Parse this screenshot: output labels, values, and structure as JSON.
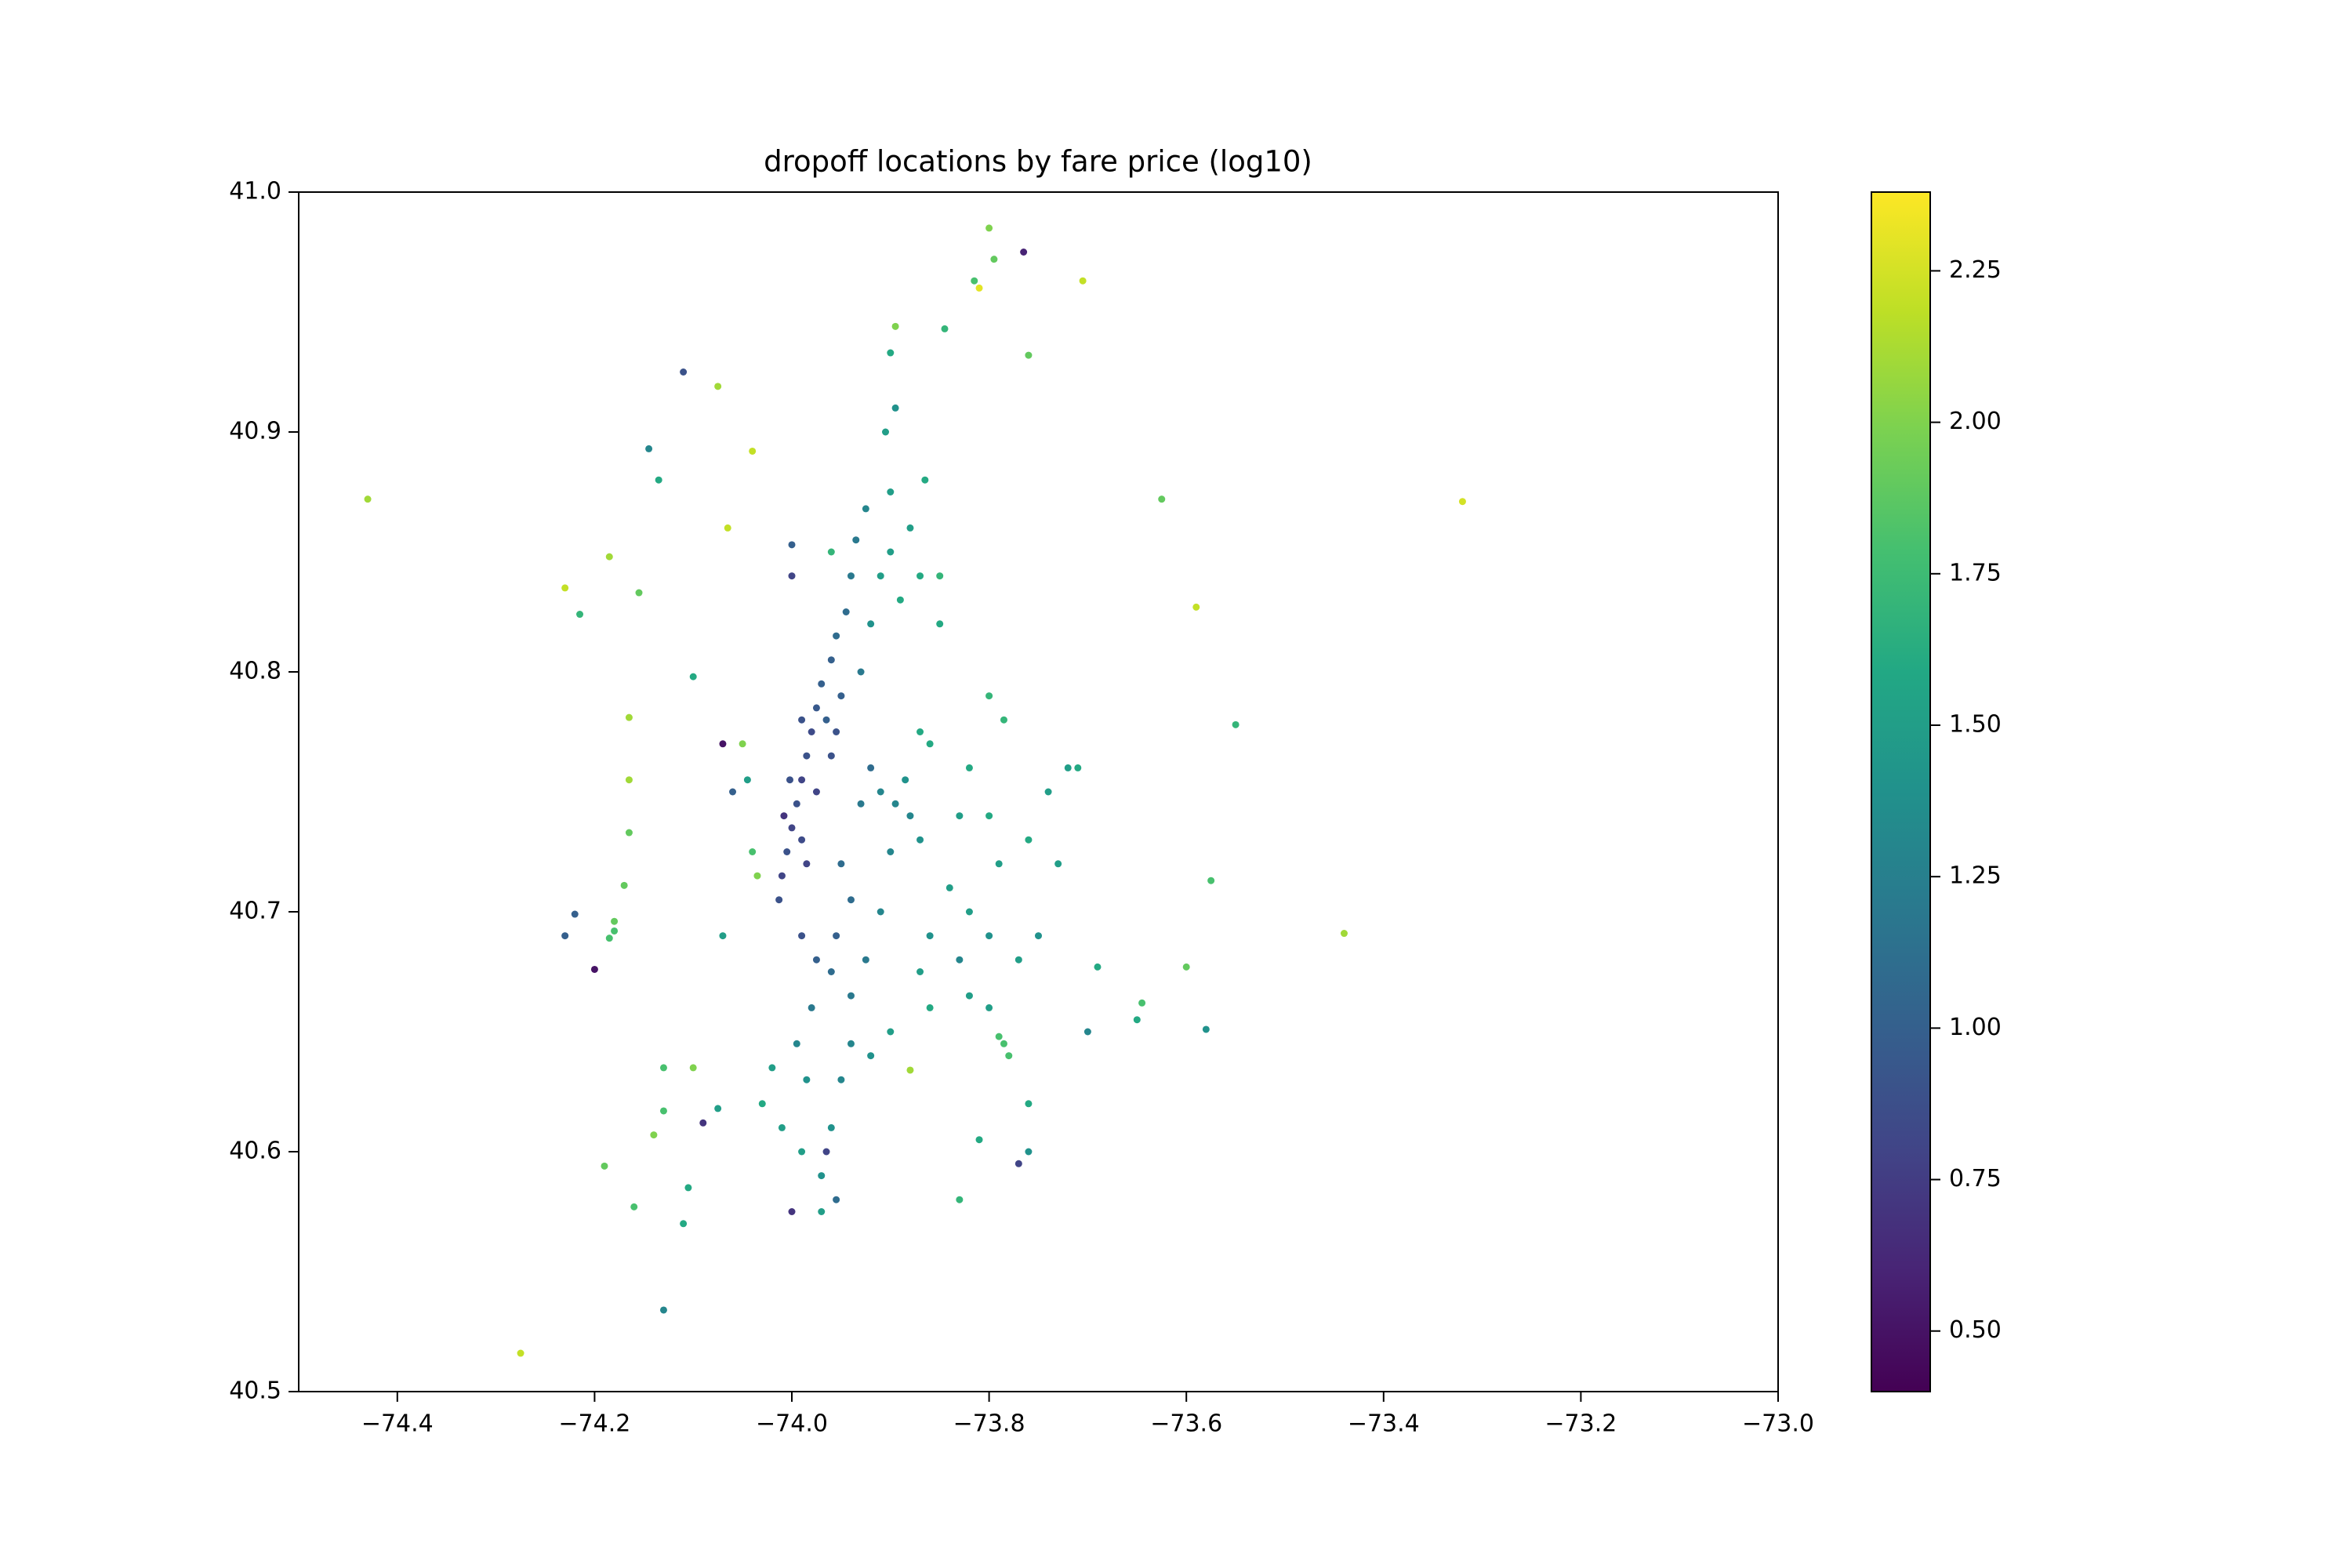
{
  "chart_data": {
    "type": "scatter",
    "title": "dropoff locations by fare price (log10)",
    "x": [
      -74.43,
      -73.32,
      -74.275,
      -73.59,
      -73.44,
      -73.625,
      -73.55,
      -73.575,
      -73.6,
      -73.645,
      -73.65,
      -73.58,
      -73.69,
      -73.8,
      -73.765,
      -73.795,
      -73.815,
      -73.81,
      -73.705,
      -73.845,
      -73.895,
      -73.76,
      -73.9,
      -74.11,
      -74.075,
      -74.04,
      -74.145,
      -74.135,
      -74.065,
      -74.185,
      -74.23,
      -74.215,
      -74.155,
      -74.1,
      -74.165,
      -74.165,
      -74.165,
      -74.17,
      -74.18,
      -74.185,
      -74.18,
      -74.22,
      -74.23,
      -74.2,
      -74.07,
      -74.13,
      -74.13,
      -74.14,
      -74.19,
      -74.16,
      -74.105,
      -74.11,
      -74.13,
      -74.09,
      -74.1,
      -74.075,
      -74.013,
      -74.01,
      -74.005,
      -74.0,
      -73.995,
      -73.99,
      -73.985,
      -73.98,
      -73.975,
      -73.97,
      -73.96,
      -73.955,
      -73.945,
      -73.94,
      -73.935,
      -73.925,
      -74.008,
      -73.975,
      -73.96,
      -73.955,
      -73.99,
      -73.985,
      -74.002,
      -73.965,
      -73.95,
      -73.99,
      -73.95,
      -73.94,
      -73.955,
      -73.975,
      -73.99,
      -73.96,
      -73.94,
      -73.925,
      -73.91,
      -73.93,
      -73.92,
      -73.91,
      -73.895,
      -73.885,
      -73.88,
      -73.87,
      -73.9,
      -73.98,
      -73.995,
      -73.985,
      -74.02,
      -74.03,
      -74.01,
      -73.99,
      -73.97,
      -73.96,
      -73.95,
      -73.94,
      -73.92,
      -73.9,
      -73.97,
      -74.0,
      -73.955,
      -73.965,
      -73.91,
      -73.9,
      -73.89,
      -73.87,
      -73.88,
      -73.9,
      -73.905,
      -73.895,
      -73.865,
      -73.85,
      -73.85,
      -73.92,
      -73.93,
      -73.86,
      -73.87,
      -73.82,
      -73.8,
      -73.785,
      -73.83,
      -73.8,
      -73.79,
      -73.76,
      -73.74,
      -73.72,
      -73.73,
      -73.84,
      -73.82,
      -73.8,
      -73.77,
      -73.75,
      -73.83,
      -73.86,
      -73.87,
      -73.86,
      -73.8,
      -73.785,
      -73.78,
      -73.79,
      -73.82,
      -73.76,
      -73.76,
      -73.77,
      -74.05,
      -74.045,
      -74.04,
      -74.035,
      -74.06,
      -74.07,
      -74.0,
      -74.0,
      -73.96,
      -73.88,
      -73.83,
      -73.81,
      -73.71,
      -73.7
    ],
    "values": [
      40.872,
      40.871,
      40.516,
      40.827,
      40.691,
      40.872,
      40.778,
      40.713,
      40.677,
      40.662,
      40.655,
      40.651,
      40.677,
      40.985,
      40.975,
      40.972,
      40.963,
      40.96,
      40.963,
      40.943,
      40.944,
      40.932,
      40.933,
      40.925,
      40.919,
      40.892,
      40.893,
      40.88,
      40.86,
      40.848,
      40.835,
      40.824,
      40.833,
      40.798,
      40.781,
      40.755,
      40.733,
      40.711,
      40.692,
      40.689,
      40.696,
      40.699,
      40.69,
      40.676,
      40.69,
      40.635,
      40.617,
      40.607,
      40.594,
      40.577,
      40.585,
      40.57,
      40.534,
      40.612,
      40.635,
      40.618,
      40.705,
      40.715,
      40.725,
      40.735,
      40.745,
      40.755,
      40.765,
      40.775,
      40.785,
      40.795,
      40.805,
      40.815,
      40.825,
      40.84,
      40.855,
      40.868,
      40.74,
      40.75,
      40.765,
      40.775,
      40.73,
      40.72,
      40.755,
      40.78,
      40.79,
      40.78,
      40.72,
      40.705,
      40.69,
      40.68,
      40.69,
      40.675,
      40.665,
      40.68,
      40.7,
      40.745,
      40.76,
      40.75,
      40.745,
      40.755,
      40.74,
      40.73,
      40.725,
      40.66,
      40.645,
      40.63,
      40.635,
      40.62,
      40.61,
      40.6,
      40.59,
      40.61,
      40.63,
      40.645,
      40.64,
      40.65,
      40.575,
      40.575,
      40.58,
      40.6,
      40.84,
      40.85,
      40.83,
      40.84,
      40.86,
      40.875,
      40.9,
      40.91,
      40.88,
      40.84,
      40.82,
      40.82,
      40.8,
      40.77,
      40.775,
      40.76,
      40.79,
      40.78,
      40.74,
      40.74,
      40.72,
      40.73,
      40.75,
      40.76,
      40.72,
      40.71,
      40.7,
      40.69,
      40.68,
      40.69,
      40.68,
      40.69,
      40.675,
      40.66,
      40.66,
      40.645,
      40.64,
      40.648,
      40.665,
      40.62,
      40.6,
      40.595,
      40.77,
      40.755,
      40.725,
      40.715,
      40.75,
      40.77,
      40.853,
      40.84,
      40.85,
      40.634,
      40.58,
      40.605,
      40.76,
      40.65
    ],
    "color_values": [
      2.1,
      2.25,
      2.2,
      2.2,
      2.1,
      1.9,
      1.7,
      1.8,
      1.9,
      1.8,
      1.6,
      1.4,
      1.6,
      2.0,
      0.6,
      1.9,
      1.8,
      2.3,
      2.2,
      1.7,
      2.0,
      1.9,
      1.6,
      0.9,
      2.1,
      2.2,
      1.3,
      1.6,
      2.2,
      2.1,
      2.2,
      1.7,
      1.9,
      1.6,
      2.1,
      2.1,
      1.9,
      1.9,
      1.8,
      1.8,
      1.9,
      1.0,
      1.0,
      0.5,
      1.5,
      1.8,
      1.8,
      2.0,
      1.9,
      1.8,
      1.6,
      1.6,
      1.3,
      0.7,
      2.0,
      1.5,
      0.9,
      0.8,
      0.9,
      0.8,
      0.9,
      0.8,
      0.9,
      0.85,
      0.95,
      1.0,
      1.0,
      1.1,
      1.1,
      1.2,
      1.2,
      1.3,
      0.7,
      0.8,
      0.9,
      0.9,
      0.85,
      0.8,
      0.9,
      1.0,
      1.0,
      0.9,
      1.1,
      1.1,
      1.0,
      1.0,
      0.9,
      1.1,
      1.2,
      1.2,
      1.3,
      1.2,
      1.1,
      1.3,
      1.3,
      1.4,
      1.3,
      1.4,
      1.3,
      1.2,
      1.3,
      1.4,
      1.5,
      1.6,
      1.5,
      1.5,
      1.4,
      1.4,
      1.3,
      1.3,
      1.4,
      1.5,
      1.5,
      0.7,
      1.1,
      0.8,
      1.5,
      1.5,
      1.6,
      1.6,
      1.5,
      1.5,
      1.5,
      1.4,
      1.6,
      1.7,
      1.6,
      1.4,
      1.2,
      1.6,
      1.6,
      1.6,
      1.7,
      1.7,
      1.5,
      1.6,
      1.5,
      1.6,
      1.5,
      1.5,
      1.5,
      1.5,
      1.5,
      1.4,
      1.5,
      1.4,
      1.3,
      1.4,
      1.5,
      1.6,
      1.5,
      1.8,
      1.8,
      1.8,
      1.5,
      1.6,
      1.4,
      0.8,
      2.0,
      1.5,
      1.8,
      2.0,
      1.0,
      0.5,
      1.0,
      0.8,
      1.7,
      2.1,
      1.7,
      1.6,
      1.6,
      1.3
    ],
    "colormap": "viridis",
    "xlim": [
      -74.5,
      -73.0
    ],
    "xticks": [
      {
        "value": -74.4,
        "label": "−74.4"
      },
      {
        "value": -74.2,
        "label": "−74.2"
      },
      {
        "value": -74.0,
        "label": "−74.0"
      },
      {
        "value": -73.8,
        "label": "−73.8"
      },
      {
        "value": -73.6,
        "label": "−73.6"
      },
      {
        "value": -73.4,
        "label": "−73.4"
      },
      {
        "value": -73.2,
        "label": "−73.2"
      },
      {
        "value": -73.0,
        "label": "−73.0"
      }
    ],
    "ylim": [
      40.5,
      41.0
    ],
    "yticks": [
      40.5,
      40.6,
      40.7,
      40.8,
      40.9,
      {
        "value": 41.0,
        "label": "41.0"
      }
    ],
    "clim": [
      0.4,
      2.38
    ],
    "cticks": [
      {
        "value": 0.5,
        "label": "0.50"
      },
      0.75,
      {
        "value": 1.0,
        "label": "1.00"
      },
      1.25,
      {
        "value": 1.5,
        "label": "1.50"
      },
      1.75,
      {
        "value": 2.0,
        "label": "2.00"
      },
      2.25
    ]
  }
}
